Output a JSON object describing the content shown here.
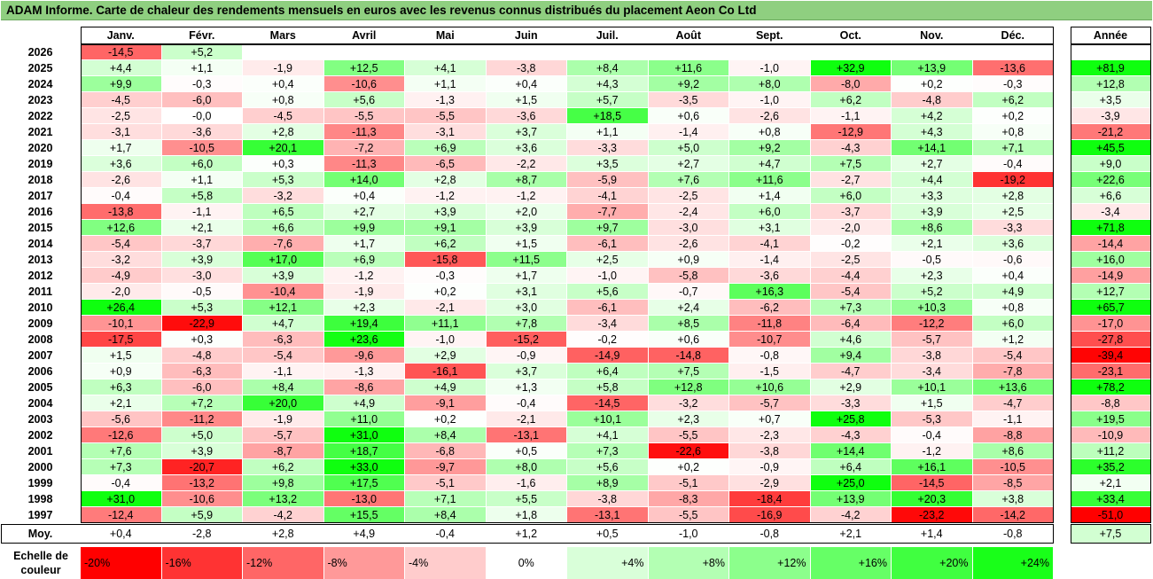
{
  "title": "ADAM Informe. Carte de chaleur des rendements mensuels en euros avec les revenus connus distribués du placement Aeon Co Ltd",
  "chart_data": {
    "type": "heatmap",
    "columns": [
      "Janv.",
      "Févr.",
      "Mars",
      "Avril",
      "Mai",
      "Juin",
      "Juil.",
      "Août",
      "Sept.",
      "Oct.",
      "Nov.",
      "Déc."
    ],
    "year_column": "Année",
    "rows": [
      {
        "year": "2026",
        "months": [
          "-14,5",
          "+5,2",
          "",
          "",
          "",
          "",
          "",
          "",
          "",
          "",
          "",
          ""
        ],
        "annual": ""
      },
      {
        "year": "2025",
        "months": [
          "+4,4",
          "+1,1",
          "-1,9",
          "+12,5",
          "+4,1",
          "-3,8",
          "+8,4",
          "+11,6",
          "-1,0",
          "+32,9",
          "+13,9",
          "-13,6"
        ],
        "annual": "+81,9"
      },
      {
        "year": "2024",
        "months": [
          "+9,9",
          "-0,3",
          "+0,4",
          "-10,6",
          "+1,1",
          "+0,4",
          "+4,3",
          "+9,2",
          "+8,0",
          "-8,0",
          "+0,2",
          "-0,3"
        ],
        "annual": "+12,8"
      },
      {
        "year": "2023",
        "months": [
          "-4,5",
          "-6,0",
          "+0,8",
          "+5,6",
          "-1,3",
          "+1,5",
          "+5,7",
          "-3,5",
          "-1,0",
          "+6,2",
          "-4,8",
          "+6,2"
        ],
        "annual": "+3,5"
      },
      {
        "year": "2022",
        "months": [
          "-2,5",
          "-0,0",
          "-4,5",
          "-5,5",
          "-5,5",
          "-3,6",
          "+18,5",
          "+0,6",
          "-2,6",
          "-1,1",
          "+4,2",
          "+0,2"
        ],
        "annual": "-3,9"
      },
      {
        "year": "2021",
        "months": [
          "-3,1",
          "-3,6",
          "+2,8",
          "-11,3",
          "-3,1",
          "+3,7",
          "+1,1",
          "-1,4",
          "+0,8",
          "-12,9",
          "+4,3",
          "+0,8"
        ],
        "annual": "-21,2"
      },
      {
        "year": "2020",
        "months": [
          "+1,7",
          "-10,5",
          "+20,1",
          "-7,2",
          "+6,9",
          "+3,6",
          "-3,3",
          "+5,0",
          "+9,2",
          "-4,3",
          "+14,1",
          "+7,1"
        ],
        "annual": "+45,5"
      },
      {
        "year": "2019",
        "months": [
          "+3,6",
          "+6,0",
          "+0,3",
          "-11,3",
          "-6,5",
          "-2,2",
          "+3,5",
          "+2,7",
          "+4,7",
          "+7,5",
          "+2,7",
          "-0,4"
        ],
        "annual": "+9,0"
      },
      {
        "year": "2018",
        "months": [
          "-2,6",
          "+1,1",
          "+5,3",
          "+14,0",
          "+2,8",
          "+8,7",
          "-5,9",
          "+7,6",
          "+11,6",
          "-2,7",
          "+4,4",
          "-19,2"
        ],
        "annual": "+22,6"
      },
      {
        "year": "2017",
        "months": [
          "-0,4",
          "+5,8",
          "-3,2",
          "+0,4",
          "-1,2",
          "-1,2",
          "-4,1",
          "-2,5",
          "+1,4",
          "+6,0",
          "+3,3",
          "+2,8"
        ],
        "annual": "+6,6"
      },
      {
        "year": "2016",
        "months": [
          "-13,8",
          "-1,1",
          "+6,5",
          "+2,7",
          "+3,9",
          "+2,0",
          "-7,7",
          "-2,4",
          "+6,0",
          "-3,7",
          "+3,9",
          "+2,5"
        ],
        "annual": "-3,4"
      },
      {
        "year": "2015",
        "months": [
          "+12,6",
          "+2,1",
          "+6,6",
          "+9,9",
          "+9,1",
          "+3,9",
          "+9,7",
          "-3,0",
          "+3,1",
          "-2,0",
          "+8,6",
          "-3,3"
        ],
        "annual": "+71,8"
      },
      {
        "year": "2014",
        "months": [
          "-5,4",
          "-3,7",
          "-7,6",
          "+1,7",
          "+6,2",
          "+1,5",
          "-6,1",
          "-2,6",
          "-4,1",
          "-0,2",
          "+2,1",
          "+3,6"
        ],
        "annual": "-14,4"
      },
      {
        "year": "2013",
        "months": [
          "-3,2",
          "+3,9",
          "+17,0",
          "+6,9",
          "-15,8",
          "+11,5",
          "+2,5",
          "+0,9",
          "-1,4",
          "-2,5",
          "-0,5",
          "-0,6"
        ],
        "annual": "+16,0"
      },
      {
        "year": "2012",
        "months": [
          "-4,9",
          "-3,0",
          "+3,9",
          "-1,2",
          "-0,3",
          "+1,7",
          "-1,0",
          "-5,8",
          "-3,6",
          "-4,4",
          "+2,3",
          "+0,4"
        ],
        "annual": "-14,9"
      },
      {
        "year": "2011",
        "months": [
          "-2,0",
          "-0,5",
          "-10,4",
          "-1,9",
          "+0,2",
          "+3,1",
          "+5,6",
          "-0,7",
          "+16,3",
          "-5,4",
          "+5,2",
          "+4,9"
        ],
        "annual": "+12,7"
      },
      {
        "year": "2010",
        "months": [
          "+26,4",
          "+5,3",
          "+12,1",
          "+2,3",
          "-2,1",
          "+3,0",
          "-6,1",
          "+2,4",
          "-6,2",
          "+7,3",
          "+10,3",
          "+0,8"
        ],
        "annual": "+65,7"
      },
      {
        "year": "2009",
        "months": [
          "-10,1",
          "-22,9",
          "+4,7",
          "+19,4",
          "+11,1",
          "+7,8",
          "-3,4",
          "+8,5",
          "-11,8",
          "-6,4",
          "-12,2",
          "+6,0"
        ],
        "annual": "-17,0"
      },
      {
        "year": "2008",
        "months": [
          "-17,5",
          "+0,3",
          "-6,3",
          "+23,6",
          "-1,0",
          "-15,2",
          "-0,2",
          "+0,6",
          "-10,7",
          "+4,6",
          "-5,7",
          "+1,2"
        ],
        "annual": "-27,8"
      },
      {
        "year": "2007",
        "months": [
          "+1,5",
          "-4,8",
          "-5,4",
          "-9,6",
          "+2,9",
          "-0,9",
          "-14,9",
          "-14,8",
          "-0,8",
          "+9,4",
          "-3,8",
          "-5,4"
        ],
        "annual": "-39,4"
      },
      {
        "year": "2006",
        "months": [
          "+0,9",
          "-6,3",
          "-1,1",
          "-1,3",
          "-16,1",
          "+3,7",
          "+6,4",
          "+7,5",
          "-1,5",
          "-4,7",
          "-3,4",
          "-7,8"
        ],
        "annual": "-23,1"
      },
      {
        "year": "2005",
        "months": [
          "+6,3",
          "-6,0",
          "+8,4",
          "-8,6",
          "+4,9",
          "+1,3",
          "+5,8",
          "+12,8",
          "+10,6",
          "+2,9",
          "+10,1",
          "+13,6"
        ],
        "annual": "+78,2"
      },
      {
        "year": "2004",
        "months": [
          "+2,1",
          "+7,2",
          "+20,0",
          "+4,9",
          "-9,1",
          "-0,4",
          "-14,5",
          "-3,2",
          "-5,7",
          "-3,3",
          "+1,5",
          "-4,7"
        ],
        "annual": "-8,8"
      },
      {
        "year": "2003",
        "months": [
          "-5,6",
          "-11,2",
          "-1,9",
          "+11,0",
          "+0,2",
          "-2,1",
          "+10,1",
          "+2,3",
          "+0,7",
          "+25,8",
          "-5,3",
          "-1,1"
        ],
        "annual": "+19,5"
      },
      {
        "year": "2002",
        "months": [
          "-12,6",
          "+5,0",
          "-5,7",
          "+31,0",
          "+8,4",
          "-13,1",
          "+4,1",
          "-5,5",
          "-2,3",
          "-4,3",
          "-0,4",
          "-8,8"
        ],
        "annual": "-10,9"
      },
      {
        "year": "2001",
        "months": [
          "+7,6",
          "+3,9",
          "-8,7",
          "+18,7",
          "-6,8",
          "+0,5",
          "+7,3",
          "-22,6",
          "-3,8",
          "+14,4",
          "-1,2",
          "+8,6"
        ],
        "annual": "+11,2"
      },
      {
        "year": "2000",
        "months": [
          "+7,3",
          "-20,7",
          "+6,2",
          "+33,0",
          "-9,7",
          "+8,0",
          "+5,6",
          "+0,2",
          "-0,9",
          "+6,4",
          "+16,1",
          "-10,5"
        ],
        "annual": "+35,2"
      },
      {
        "year": "1999",
        "months": [
          "-0,4",
          "-13,2",
          "+9,8",
          "+17,5",
          "-5,1",
          "-1,6",
          "+8,9",
          "-5,1",
          "-2,9",
          "+25,0",
          "-14,5",
          "-8,5"
        ],
        "annual": "+2,1"
      },
      {
        "year": "1998",
        "months": [
          "+31,0",
          "-10,6",
          "+13,2",
          "-13,0",
          "+7,1",
          "+5,5",
          "-3,8",
          "-8,3",
          "-18,4",
          "+13,9",
          "+20,3",
          "+3,8"
        ],
        "annual": "+33,4"
      },
      {
        "year": "1997",
        "months": [
          "-12,4",
          "+5,9",
          "-4,2",
          "+15,5",
          "+8,4",
          "+1,8",
          "-13,1",
          "-5,5",
          "-16,9",
          "-4,2",
          "-23,2",
          "-14,2"
        ],
        "annual": "-51,0"
      }
    ],
    "average": {
      "label": "Moy.",
      "months": [
        "+0,4",
        "-2,8",
        "+2,8",
        "+4,9",
        "-0,4",
        "+1,2",
        "+0,5",
        "-1,0",
        "-0,8",
        "+2,1",
        "+1,4",
        "-0,8"
      ],
      "annual": "+7,5"
    },
    "color_scale": {
      "label": "Echelle de couleur",
      "steps": [
        {
          "label": "-20%",
          "value": -20,
          "color": "#ff0000"
        },
        {
          "label": "-16%",
          "value": -16,
          "color": "#ff3333"
        },
        {
          "label": "-12%",
          "value": -12,
          "color": "#ff6666"
        },
        {
          "label": "-8%",
          "value": -8,
          "color": "#ff9999"
        },
        {
          "label": "-4%",
          "value": -4,
          "color": "#ffcccc"
        },
        {
          "label": "0%",
          "value": 0,
          "color": "#ffffff"
        },
        {
          "label": "+4%",
          "value": 4,
          "color": "#d9ffd9"
        },
        {
          "label": "+8%",
          "value": 8,
          "color": "#b3ffb3"
        },
        {
          "label": "+12%",
          "value": 12,
          "color": "#8cff8c"
        },
        {
          "label": "+16%",
          "value": 16,
          "color": "#66ff66"
        },
        {
          "label": "+20%",
          "value": 20,
          "color": "#40ff40"
        },
        {
          "label": "+24%",
          "value": 24,
          "color": "#19ff19"
        }
      ]
    }
  }
}
